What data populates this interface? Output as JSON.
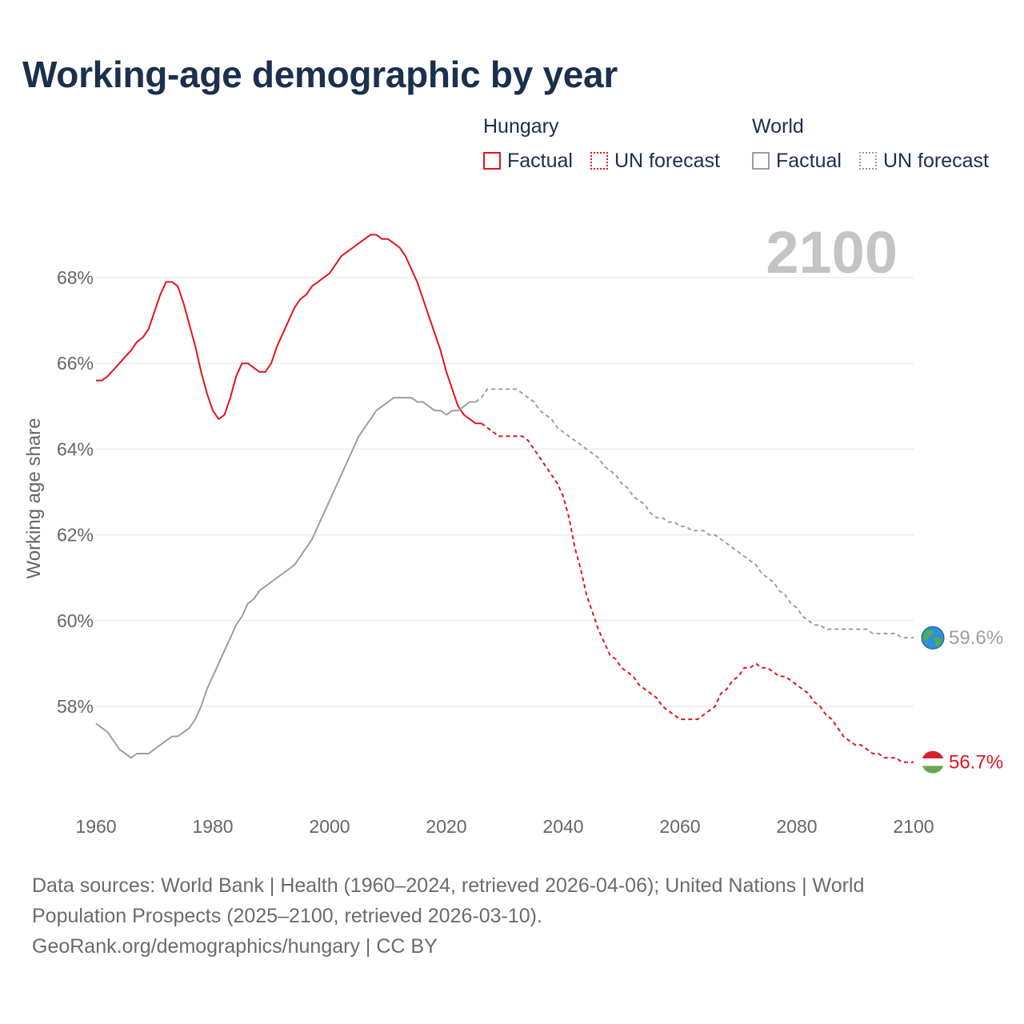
{
  "title": "Working-age demographic by year",
  "legend": {
    "hungary_title": "Hungary",
    "world_title": "World",
    "hungary_factual": "Factual",
    "hungary_forecast": "UN forecast",
    "world_factual": "Factual",
    "world_forecast": "UN forecast"
  },
  "colors": {
    "hungary": "#e3141b",
    "world": "#9e9e9e",
    "year_watermark": "#c4c4c4",
    "grid": "#e8e8e8",
    "axis_text": "#666666"
  },
  "source": {
    "line1": "Data sources: World Bank | Health (1960–2024, retrieved 2026-04-06); United Nations | World Population Prospects (2025–2100, retrieved 2026-03-10).",
    "line2": "GeoRank.org/demographics/hungary | CC BY"
  },
  "chart_data": {
    "type": "line",
    "title": "Working-age demographic by year",
    "xlabel": "",
    "ylabel": "Working age share",
    "year_watermark": "2100",
    "xlim": [
      1960,
      2100
    ],
    "ylim": [
      56.0,
      69.4
    ],
    "x_ticks": [
      1960,
      1980,
      2000,
      2020,
      2040,
      2060,
      2080,
      2100
    ],
    "x_tick_labels": [
      "1960",
      "1980",
      "2000",
      "2020",
      "2040",
      "2060",
      "2080",
      "2100"
    ],
    "y_ticks": [
      58,
      60,
      62,
      64,
      66,
      68
    ],
    "y_tick_labels": [
      "58%",
      "60%",
      "62%",
      "64%",
      "66%",
      "68%"
    ],
    "grid": true,
    "series": [
      {
        "name": "Hungary factual",
        "style": "solid",
        "color": "#e3141b",
        "points": [
          [
            1960,
            65.6
          ],
          [
            1961,
            65.6
          ],
          [
            1962,
            65.7
          ],
          [
            1964,
            66.0
          ],
          [
            1966,
            66.3
          ],
          [
            1967,
            66.5
          ],
          [
            1968,
            66.6
          ],
          [
            1969,
            66.8
          ],
          [
            1970,
            67.2
          ],
          [
            1971,
            67.6
          ],
          [
            1972,
            67.9
          ],
          [
            1973,
            67.9
          ],
          [
            1974,
            67.8
          ],
          [
            1975,
            67.4
          ],
          [
            1976,
            66.9
          ],
          [
            1977,
            66.4
          ],
          [
            1978,
            65.8
          ],
          [
            1979,
            65.3
          ],
          [
            1980,
            64.9
          ],
          [
            1981,
            64.7
          ],
          [
            1982,
            64.8
          ],
          [
            1983,
            65.2
          ],
          [
            1984,
            65.7
          ],
          [
            1985,
            66.0
          ],
          [
            1986,
            66.0
          ],
          [
            1987,
            65.9
          ],
          [
            1988,
            65.8
          ],
          [
            1989,
            65.8
          ],
          [
            1990,
            66.0
          ],
          [
            1991,
            66.4
          ],
          [
            1992,
            66.7
          ],
          [
            1993,
            67.0
          ],
          [
            1994,
            67.3
          ],
          [
            1995,
            67.5
          ],
          [
            1996,
            67.6
          ],
          [
            1997,
            67.8
          ],
          [
            1998,
            67.9
          ],
          [
            1999,
            68.0
          ],
          [
            2000,
            68.1
          ],
          [
            2001,
            68.3
          ],
          [
            2002,
            68.5
          ],
          [
            2003,
            68.6
          ],
          [
            2004,
            68.7
          ],
          [
            2005,
            68.8
          ],
          [
            2006,
            68.9
          ],
          [
            2007,
            69.0
          ],
          [
            2008,
            69.0
          ],
          [
            2009,
            68.9
          ],
          [
            2010,
            68.9
          ],
          [
            2011,
            68.8
          ],
          [
            2012,
            68.7
          ],
          [
            2013,
            68.5
          ],
          [
            2014,
            68.2
          ],
          [
            2015,
            67.9
          ],
          [
            2016,
            67.5
          ],
          [
            2017,
            67.1
          ],
          [
            2018,
            66.7
          ],
          [
            2019,
            66.3
          ],
          [
            2020,
            65.8
          ],
          [
            2021,
            65.4
          ],
          [
            2022,
            65.0
          ],
          [
            2023,
            64.8
          ],
          [
            2024,
            64.7
          ],
          [
            2025,
            64.6
          ],
          [
            2026,
            64.6
          ]
        ]
      },
      {
        "name": "Hungary UN forecast",
        "style": "dashed",
        "color": "#e3141b",
        "points": [
          [
            2026,
            64.6
          ],
          [
            2027,
            64.5
          ],
          [
            2028,
            64.4
          ],
          [
            2029,
            64.3
          ],
          [
            2031,
            64.3
          ],
          [
            2033,
            64.3
          ],
          [
            2034,
            64.2
          ],
          [
            2035,
            64.0
          ],
          [
            2036,
            63.8
          ],
          [
            2037,
            63.6
          ],
          [
            2038,
            63.4
          ],
          [
            2039,
            63.2
          ],
          [
            2040,
            62.9
          ],
          [
            2041,
            62.4
          ],
          [
            2042,
            61.7
          ],
          [
            2043,
            61.2
          ],
          [
            2044,
            60.6
          ],
          [
            2045,
            60.2
          ],
          [
            2046,
            59.8
          ],
          [
            2047,
            59.5
          ],
          [
            2048,
            59.2
          ],
          [
            2049,
            59.1
          ],
          [
            2050,
            58.9
          ],
          [
            2051,
            58.8
          ],
          [
            2052,
            58.7
          ],
          [
            2053,
            58.5
          ],
          [
            2054,
            58.4
          ],
          [
            2055,
            58.3
          ],
          [
            2056,
            58.2
          ],
          [
            2057,
            58.0
          ],
          [
            2058,
            57.9
          ],
          [
            2059,
            57.8
          ],
          [
            2060,
            57.7
          ],
          [
            2061,
            57.7
          ],
          [
            2062,
            57.7
          ],
          [
            2063,
            57.7
          ],
          [
            2064,
            57.8
          ],
          [
            2065,
            57.9
          ],
          [
            2066,
            58.0
          ],
          [
            2067,
            58.3
          ],
          [
            2068,
            58.4
          ],
          [
            2069,
            58.6
          ],
          [
            2070,
            58.7
          ],
          [
            2071,
            58.9
          ],
          [
            2072,
            58.9
          ],
          [
            2073,
            59.0
          ],
          [
            2074,
            58.9
          ],
          [
            2075,
            58.9
          ],
          [
            2076,
            58.8
          ],
          [
            2077,
            58.7
          ],
          [
            2078,
            58.7
          ],
          [
            2079,
            58.6
          ],
          [
            2080,
            58.5
          ],
          [
            2081,
            58.4
          ],
          [
            2082,
            58.3
          ],
          [
            2083,
            58.1
          ],
          [
            2084,
            58.0
          ],
          [
            2085,
            57.8
          ],
          [
            2086,
            57.7
          ],
          [
            2087,
            57.5
          ],
          [
            2088,
            57.3
          ],
          [
            2089,
            57.2
          ],
          [
            2090,
            57.1
          ],
          [
            2091,
            57.1
          ],
          [
            2092,
            57.0
          ],
          [
            2093,
            56.9
          ],
          [
            2094,
            56.9
          ],
          [
            2095,
            56.8
          ],
          [
            2096,
            56.8
          ],
          [
            2097,
            56.8
          ],
          [
            2098,
            56.7
          ],
          [
            2099,
            56.7
          ],
          [
            2100,
            56.7
          ]
        ]
      },
      {
        "name": "World factual",
        "style": "solid",
        "color": "#9e9e9e",
        "points": [
          [
            1960,
            57.6
          ],
          [
            1961,
            57.5
          ],
          [
            1962,
            57.4
          ],
          [
            1964,
            57.0
          ],
          [
            1966,
            56.8
          ],
          [
            1967,
            56.9
          ],
          [
            1969,
            56.9
          ],
          [
            1970,
            57.0
          ],
          [
            1971,
            57.1
          ],
          [
            1972,
            57.2
          ],
          [
            1973,
            57.3
          ],
          [
            1974,
            57.3
          ],
          [
            1975,
            57.4
          ],
          [
            1976,
            57.5
          ],
          [
            1977,
            57.7
          ],
          [
            1978,
            58.0
          ],
          [
            1979,
            58.4
          ],
          [
            1980,
            58.7
          ],
          [
            1981,
            59.0
          ],
          [
            1982,
            59.3
          ],
          [
            1983,
            59.6
          ],
          [
            1984,
            59.9
          ],
          [
            1985,
            60.1
          ],
          [
            1986,
            60.4
          ],
          [
            1987,
            60.5
          ],
          [
            1988,
            60.7
          ],
          [
            1989,
            60.8
          ],
          [
            1990,
            60.9
          ],
          [
            1991,
            61.0
          ],
          [
            1992,
            61.1
          ],
          [
            1993,
            61.2
          ],
          [
            1994,
            61.3
          ],
          [
            1995,
            61.5
          ],
          [
            1996,
            61.7
          ],
          [
            1997,
            61.9
          ],
          [
            1998,
            62.2
          ],
          [
            1999,
            62.5
          ],
          [
            2000,
            62.8
          ],
          [
            2001,
            63.1
          ],
          [
            2002,
            63.4
          ],
          [
            2003,
            63.7
          ],
          [
            2004,
            64.0
          ],
          [
            2005,
            64.3
          ],
          [
            2006,
            64.5
          ],
          [
            2007,
            64.7
          ],
          [
            2008,
            64.9
          ],
          [
            2009,
            65.0
          ],
          [
            2010,
            65.1
          ],
          [
            2011,
            65.2
          ],
          [
            2012,
            65.2
          ],
          [
            2013,
            65.2
          ],
          [
            2014,
            65.2
          ],
          [
            2015,
            65.1
          ],
          [
            2016,
            65.1
          ],
          [
            2017,
            65.0
          ],
          [
            2018,
            64.9
          ],
          [
            2019,
            64.9
          ],
          [
            2020,
            64.8
          ],
          [
            2021,
            64.9
          ],
          [
            2022,
            64.9
          ],
          [
            2023,
            65.0
          ],
          [
            2024,
            65.1
          ],
          [
            2025,
            65.1
          ]
        ]
      },
      {
        "name": "World UN forecast",
        "style": "dashed",
        "color": "#9e9e9e",
        "points": [
          [
            2025,
            65.1
          ],
          [
            2026,
            65.2
          ],
          [
            2027,
            65.4
          ],
          [
            2029,
            65.4
          ],
          [
            2031,
            65.4
          ],
          [
            2032,
            65.4
          ],
          [
            2033,
            65.3
          ],
          [
            2034,
            65.2
          ],
          [
            2035,
            65.1
          ],
          [
            2036,
            64.9
          ],
          [
            2037,
            64.8
          ],
          [
            2038,
            64.7
          ],
          [
            2039,
            64.5
          ],
          [
            2040,
            64.4
          ],
          [
            2041,
            64.3
          ],
          [
            2042,
            64.2
          ],
          [
            2043,
            64.1
          ],
          [
            2044,
            64.0
          ],
          [
            2045,
            63.9
          ],
          [
            2046,
            63.8
          ],
          [
            2047,
            63.6
          ],
          [
            2048,
            63.5
          ],
          [
            2049,
            63.4
          ],
          [
            2050,
            63.2
          ],
          [
            2051,
            63.1
          ],
          [
            2052,
            62.9
          ],
          [
            2053,
            62.8
          ],
          [
            2054,
            62.7
          ],
          [
            2055,
            62.5
          ],
          [
            2056,
            62.4
          ],
          [
            2057,
            62.4
          ],
          [
            2058,
            62.3
          ],
          [
            2059,
            62.3
          ],
          [
            2060,
            62.2
          ],
          [
            2061,
            62.2
          ],
          [
            2062,
            62.1
          ],
          [
            2063,
            62.1
          ],
          [
            2064,
            62.1
          ],
          [
            2065,
            62.0
          ],
          [
            2066,
            62.0
          ],
          [
            2067,
            61.9
          ],
          [
            2068,
            61.8
          ],
          [
            2069,
            61.7
          ],
          [
            2070,
            61.6
          ],
          [
            2071,
            61.5
          ],
          [
            2072,
            61.4
          ],
          [
            2073,
            61.3
          ],
          [
            2074,
            61.1
          ],
          [
            2075,
            61.0
          ],
          [
            2076,
            60.9
          ],
          [
            2077,
            60.7
          ],
          [
            2078,
            60.6
          ],
          [
            2079,
            60.4
          ],
          [
            2080,
            60.3
          ],
          [
            2081,
            60.1
          ],
          [
            2082,
            60.0
          ],
          [
            2083,
            59.9
          ],
          [
            2084,
            59.9
          ],
          [
            2085,
            59.8
          ],
          [
            2086,
            59.8
          ],
          [
            2087,
            59.8
          ],
          [
            2088,
            59.8
          ],
          [
            2089,
            59.8
          ],
          [
            2090,
            59.8
          ],
          [
            2091,
            59.8
          ],
          [
            2092,
            59.8
          ],
          [
            2093,
            59.7
          ],
          [
            2094,
            59.7
          ],
          [
            2095,
            59.7
          ],
          [
            2096,
            59.7
          ],
          [
            2097,
            59.7
          ],
          [
            2098,
            59.6
          ],
          [
            2099,
            59.6
          ],
          [
            2100,
            59.6
          ]
        ]
      }
    ],
    "end_labels": [
      {
        "series": "World",
        "year": 2100,
        "value": 59.6,
        "text": "59.6%",
        "icon": "globe-icon"
      },
      {
        "series": "Hungary",
        "year": 2100,
        "value": 56.7,
        "text": "56.7%",
        "icon": "hungary-flag-icon"
      }
    ]
  }
}
